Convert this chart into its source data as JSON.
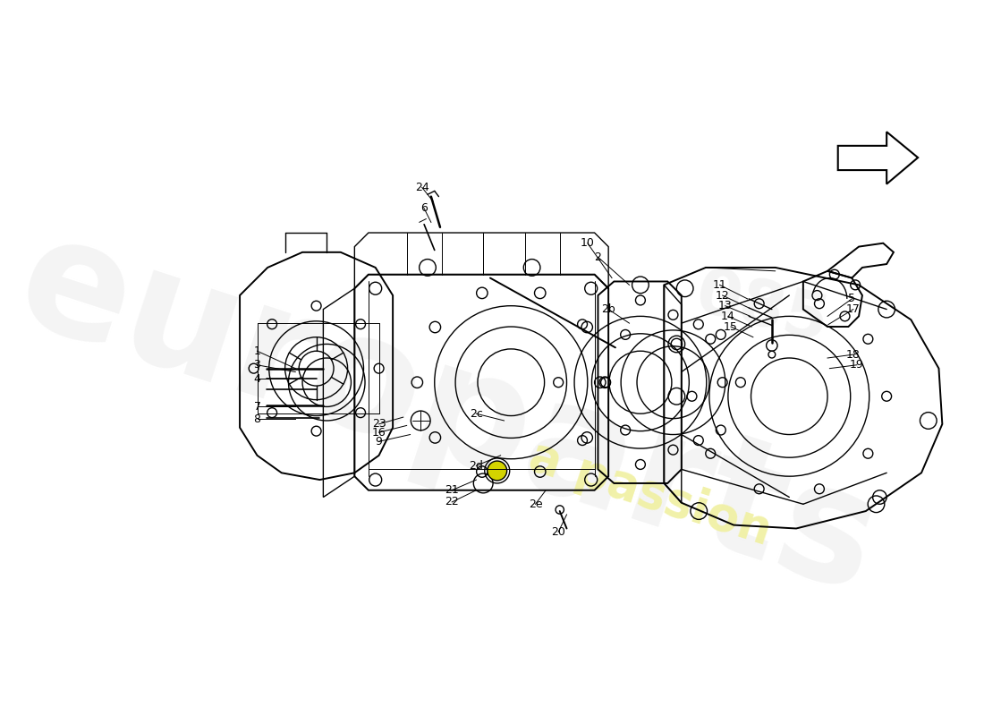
{
  "bg": "#ffffff",
  "lc": "#000000",
  "watermark_gray": "#e0e0e0",
  "watermark_yellow": "#f0f0a0",
  "figsize": [
    11.0,
    8.0
  ],
  "dpi": 100,
  "callouts": [
    [
      "1",
      55,
      390,
      110,
      415
    ],
    [
      "2",
      545,
      255,
      590,
      295
    ],
    [
      "2b",
      560,
      330,
      590,
      350
    ],
    [
      "2c",
      370,
      480,
      410,
      490
    ],
    [
      "2d",
      370,
      555,
      405,
      540
    ],
    [
      "2e",
      455,
      610,
      470,
      590
    ],
    [
      "3",
      55,
      410,
      110,
      420
    ],
    [
      "4",
      55,
      430,
      110,
      430
    ],
    [
      "5",
      910,
      315,
      875,
      340
    ],
    [
      "6",
      295,
      185,
      305,
      205
    ],
    [
      "7",
      55,
      470,
      110,
      470
    ],
    [
      "8",
      55,
      488,
      110,
      488
    ],
    [
      "9",
      230,
      520,
      275,
      510
    ],
    [
      "10",
      530,
      235,
      565,
      285
    ],
    [
      "11",
      720,
      295,
      760,
      315
    ],
    [
      "12",
      724,
      310,
      762,
      328
    ],
    [
      "13",
      728,
      325,
      764,
      340
    ],
    [
      "14",
      732,
      340,
      766,
      355
    ],
    [
      "15",
      736,
      355,
      768,
      370
    ],
    [
      "16",
      230,
      507,
      270,
      497
    ],
    [
      "17",
      912,
      330,
      876,
      352
    ],
    [
      "18",
      912,
      395,
      875,
      400
    ],
    [
      "19",
      917,
      410,
      878,
      415
    ],
    [
      "20",
      488,
      650,
      500,
      625
    ],
    [
      "21",
      335,
      590,
      370,
      575
    ],
    [
      "22",
      335,
      607,
      370,
      590
    ],
    [
      "23",
      230,
      495,
      265,
      485
    ],
    [
      "24",
      292,
      155,
      308,
      175
    ]
  ]
}
